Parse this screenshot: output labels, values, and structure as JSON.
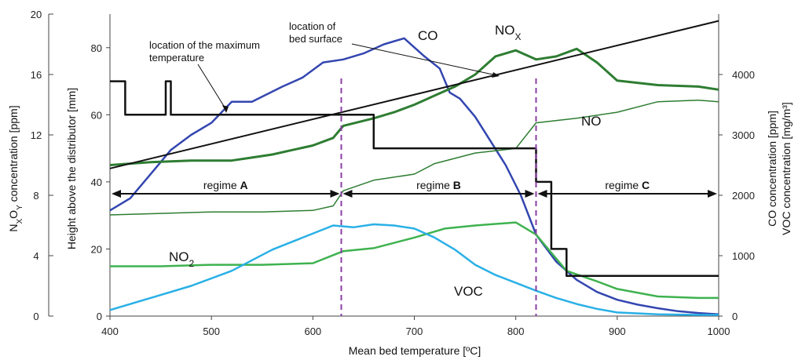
{
  "chart_data": {
    "type": "line",
    "xlabel": "Mean bed temperature [ºC]",
    "xlim": [
      400,
      1000
    ],
    "x_ticks": [
      "400",
      "500",
      "600",
      "700",
      "800",
      "900",
      "1000"
    ],
    "y_axes": {
      "left_outer": {
        "label": "NxOy concentration [ppm]",
        "ylim": [
          0,
          20
        ],
        "ticks": [
          "0",
          "4",
          "8",
          "12",
          "16",
          "20"
        ]
      },
      "left_inner": {
        "label": "Height above the distributor [mm]",
        "ylim": [
          0,
          90
        ],
        "ticks": [
          "0",
          "20",
          "40",
          "60",
          "80"
        ]
      },
      "right": {
        "label_line1": "CO concentration [ppm]",
        "label_line2": "VOC concentration [mg/m³]",
        "ylim": [
          0,
          5000
        ],
        "ticks": [
          "0",
          "1000",
          "2000",
          "3000",
          "4000"
        ]
      }
    },
    "series": [
      {
        "name": "CO",
        "axis": "right",
        "color": "#3346b0",
        "x": [
          400,
          420,
          440,
          460,
          480,
          500,
          520,
          540,
          570,
          590,
          610,
          630,
          650,
          670,
          690,
          700,
          710,
          725,
          735,
          745,
          760,
          775,
          790,
          805,
          820,
          840,
          860,
          880,
          900,
          920,
          940,
          960,
          980,
          1000
        ],
        "y": [
          1750,
          1950,
          2350,
          2750,
          3000,
          3200,
          3550,
          3550,
          3800,
          3950,
          4200,
          4250,
          4350,
          4500,
          4600,
          4450,
          4300,
          4100,
          3700,
          3600,
          3300,
          2900,
          2500,
          2000,
          1350,
          900,
          600,
          400,
          270,
          190,
          130,
          80,
          50,
          30
        ]
      },
      {
        "name": "NOx",
        "axis": "left_outer",
        "color": "#2e7d32",
        "x": [
          400,
          440,
          480,
          520,
          540,
          560,
          580,
          600,
          620,
          630,
          660,
          680,
          700,
          720,
          740,
          760,
          780,
          800,
          820,
          840,
          860,
          880,
          900,
          940,
          980,
          1000
        ],
        "y": [
          10.0,
          10.2,
          10.3,
          10.3,
          10.5,
          10.7,
          11.0,
          11.3,
          11.8,
          12.6,
          13.1,
          13.5,
          14.0,
          14.6,
          15.2,
          16.0,
          17.2,
          17.6,
          17.0,
          17.2,
          17.7,
          16.8,
          15.6,
          15.3,
          15.2,
          15.0
        ]
      },
      {
        "name": "NO",
        "axis": "left_outer",
        "color": "#2e7d32",
        "x": [
          400,
          450,
          500,
          550,
          600,
          620,
          630,
          660,
          700,
          720,
          760,
          800,
          820,
          860,
          900,
          940,
          980,
          1000
        ],
        "y": [
          6.7,
          6.8,
          6.9,
          6.9,
          7.0,
          7.3,
          8.3,
          9.0,
          9.4,
          10.1,
          10.8,
          11.1,
          12.8,
          13.1,
          13.5,
          14.2,
          14.3,
          14.2
        ]
      },
      {
        "name": "NO2",
        "axis": "left_outer",
        "color": "#3fb24f",
        "x": [
          400,
          450,
          500,
          550,
          600,
          630,
          660,
          700,
          730,
          760,
          800,
          820,
          850,
          880,
          900,
          940,
          980,
          1000
        ],
        "y": [
          3.3,
          3.3,
          3.4,
          3.4,
          3.5,
          4.3,
          4.5,
          5.2,
          5.8,
          6.0,
          6.2,
          5.4,
          3.0,
          2.3,
          1.8,
          1.3,
          1.2,
          1.2
        ]
      },
      {
        "name": "VOC",
        "axis": "right",
        "color": "#2ab0e6",
        "x": [
          400,
          440,
          480,
          520,
          560,
          590,
          620,
          640,
          660,
          680,
          700,
          720,
          740,
          760,
          780,
          800,
          820,
          840,
          860,
          880,
          900,
          940,
          980,
          1000
        ],
        "y": [
          100,
          300,
          500,
          750,
          1100,
          1300,
          1500,
          1470,
          1520,
          1500,
          1450,
          1300,
          1100,
          850,
          680,
          550,
          420,
          300,
          200,
          120,
          60,
          30,
          20,
          20
        ]
      },
      {
        "name": "location of the maximum temperature",
        "axis": "left_inner",
        "color": "#111111",
        "x": [
          400,
          415,
          415,
          455,
          455,
          460,
          460,
          660,
          660,
          820,
          820,
          835,
          835,
          850,
          850,
          1000
        ],
        "y": [
          70,
          70,
          60,
          60,
          70,
          70,
          60,
          60,
          50,
          50,
          40,
          40,
          20,
          20,
          12,
          12
        ]
      },
      {
        "name": "location of bed surface",
        "axis": "left_inner",
        "color": "#111111",
        "x": [
          400,
          1000
        ],
        "y": [
          44,
          88
        ]
      }
    ],
    "regimes": [
      {
        "label": "regime ",
        "bold": "A",
        "from": 400,
        "to": 628
      },
      {
        "label": "regime ",
        "bold": "B",
        "from": 628,
        "to": 820
      },
      {
        "label": "regime ",
        "bold": "C",
        "from": 820,
        "to": 1000
      }
    ],
    "boundaries": [
      628,
      820
    ],
    "labels": {
      "co": "CO",
      "nox_main": "NO",
      "nox_sub": "X",
      "no": "NO",
      "no2_main": "NO",
      "no2_sub": "2",
      "voc": "VOC",
      "ann_max_1": "location of the maximum",
      "ann_max_2": "temperature",
      "ann_bed_1": "location of",
      "ann_bed_2": "bed surface"
    }
  }
}
